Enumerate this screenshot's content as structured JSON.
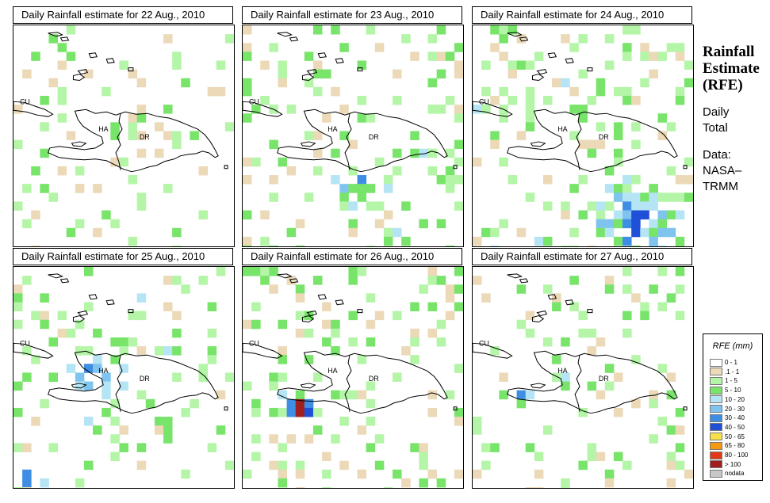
{
  "panels": [
    {
      "title": "Daily Rainfall estimate for  22 Aug., 2010",
      "seed": 11,
      "density": 0.1,
      "intensity": 0.15,
      "hotspot": "none"
    },
    {
      "title": "Daily Rainfall estimate for  23 Aug., 2010",
      "seed": 23,
      "density": 0.17,
      "intensity": 0.3,
      "hotspot": "south"
    },
    {
      "title": "Daily Rainfall estimate for  24 Aug., 2010",
      "seed": 37,
      "density": 0.22,
      "intensity": 0.45,
      "hotspot": "southeast"
    },
    {
      "title": "Daily Rainfall estimate for  25 Aug., 2010",
      "seed": 41,
      "density": 0.16,
      "intensity": 0.4,
      "hotspot": "west"
    },
    {
      "title": "Daily Rainfall estimate for  26 Aug., 2010",
      "seed": 53,
      "density": 0.16,
      "intensity": 0.25,
      "hotspot": "haiti-south"
    },
    {
      "title": "Daily Rainfall estimate for  27 Aug., 2010",
      "seed": 67,
      "density": 0.13,
      "intensity": 0.25,
      "hotspot": "haiti-west"
    }
  ],
  "country_labels": {
    "cuba": "CU",
    "haiti": "HA",
    "dominican_republic": "DR"
  },
  "side": {
    "title_lines": [
      "Rainfall",
      "Estimate",
      "(RFE)"
    ],
    "period_lines": [
      "Daily",
      "Total"
    ],
    "source_lines": [
      "Data:",
      "NASA–",
      "TRMM"
    ]
  },
  "legend": {
    "title": "RFE (mm)",
    "classes": [
      {
        "label": "0 - 1",
        "color": "#ffffff"
      },
      {
        "label": ".1 - 1",
        "color": "#ecd9b8"
      },
      {
        "label": "1 - 5",
        "color": "#b4f5a8"
      },
      {
        "label": "5 - 10",
        "color": "#78e46a"
      },
      {
        "label": "10 - 20",
        "color": "#b5e5f5"
      },
      {
        "label": "20 - 30",
        "color": "#7fc4ee"
      },
      {
        "label": "30 - 40",
        "color": "#3f8ee6"
      },
      {
        "label": "40 - 50",
        "color": "#2050d8"
      },
      {
        "label": "50 - 65",
        "color": "#f7e04a"
      },
      {
        "label": "65 - 80",
        "color": "#f59a10"
      },
      {
        "label": "80 - 100",
        "color": "#e23a18"
      },
      {
        "label": "> 100",
        "color": "#a02020"
      },
      {
        "label": "nodata",
        "color": "#c8c8c8"
      }
    ]
  }
}
